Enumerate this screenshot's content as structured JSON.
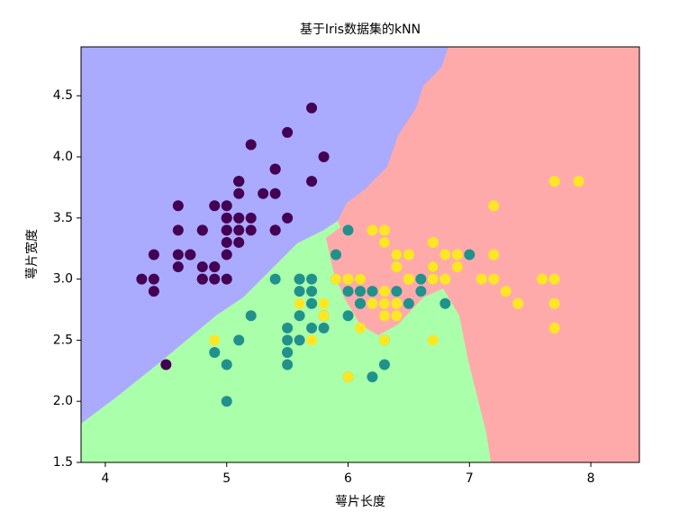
{
  "chart_data": {
    "type": "scatter",
    "title": "基于Iris数据集的kNN",
    "x_label": "萼片长度",
    "y_label": "萼片宽度",
    "xlim": [
      3.8,
      8.4
    ],
    "ylim": [
      1.5,
      4.9
    ],
    "xticks": [
      4,
      5,
      6,
      7,
      8
    ],
    "yticks": [
      1.5,
      {
        "value": 2,
        "label": "2.0"
      },
      2.5,
      {
        "value": 3,
        "label": "3.0"
      },
      3.5,
      {
        "value": 4,
        "label": "4.0"
      },
      4.5
    ],
    "series": [
      {
        "color": "#440154",
        "x": [
          5.1,
          4.9,
          4.7,
          4.6,
          5.0,
          5.4,
          4.6,
          5.0,
          4.4,
          4.9,
          5.4,
          4.8,
          4.8,
          4.3,
          5.8,
          5.7,
          5.4,
          5.1,
          5.7,
          5.1,
          5.4,
          5.1,
          4.6,
          5.1,
          4.8,
          5.0,
          5.0,
          5.2,
          5.2,
          4.7,
          4.8,
          5.4,
          5.2,
          5.5,
          4.9,
          5.0,
          5.5,
          4.9,
          4.4,
          5.1,
          5.0,
          4.5,
          4.4,
          5.0,
          5.1,
          4.8,
          5.1,
          4.6,
          5.3,
          5.0
        ],
        "values": [
          3.5,
          3.0,
          3.2,
          3.1,
          3.6,
          3.9,
          3.4,
          3.4,
          2.9,
          3.1,
          3.7,
          3.4,
          3.0,
          3.0,
          4.0,
          4.4,
          3.9,
          3.5,
          3.8,
          3.8,
          3.4,
          3.7,
          3.6,
          3.3,
          3.4,
          3.0,
          3.4,
          3.5,
          3.4,
          3.2,
          3.1,
          3.4,
          4.1,
          4.2,
          3.1,
          3.2,
          3.5,
          3.6,
          3.0,
          3.4,
          3.5,
          2.3,
          3.2,
          3.5,
          3.8,
          3.0,
          3.8,
          3.2,
          3.7,
          3.3
        ]
      },
      {
        "color": "#21918c",
        "x": [
          7.0,
          6.4,
          6.9,
          5.5,
          6.5,
          5.7,
          6.3,
          4.9,
          6.6,
          5.2,
          5.0,
          5.9,
          6.0,
          6.1,
          5.6,
          6.7,
          5.6,
          5.8,
          6.2,
          5.6,
          5.9,
          6.1,
          6.3,
          6.1,
          6.4,
          6.6,
          6.8,
          6.7,
          6.0,
          5.7,
          5.5,
          5.5,
          5.8,
          6.0,
          5.4,
          6.0,
          6.7,
          6.3,
          5.6,
          5.5,
          5.5,
          6.1,
          5.8,
          5.0,
          5.6,
          5.7,
          5.7,
          6.2,
          5.1,
          5.7
        ],
        "values": [
          3.2,
          3.2,
          3.1,
          2.3,
          2.8,
          2.8,
          3.3,
          2.4,
          2.9,
          2.7,
          2.0,
          3.0,
          2.2,
          2.9,
          2.9,
          3.1,
          3.0,
          2.7,
          2.2,
          2.5,
          3.2,
          2.8,
          2.5,
          2.8,
          2.9,
          3.0,
          2.8,
          3.0,
          2.9,
          2.6,
          2.4,
          2.4,
          2.7,
          2.7,
          3.0,
          3.4,
          3.1,
          2.3,
          3.0,
          2.5,
          2.6,
          3.0,
          2.6,
          2.3,
          2.7,
          3.0,
          2.9,
          2.9,
          2.5,
          2.8
        ]
      },
      {
        "color": "#fde725",
        "x": [
          6.3,
          5.8,
          7.1,
          6.3,
          6.5,
          7.6,
          4.9,
          7.3,
          6.7,
          7.2,
          6.5,
          6.4,
          6.8,
          5.7,
          5.8,
          6.4,
          6.5,
          7.7,
          7.7,
          6.0,
          6.9,
          5.6,
          7.7,
          6.3,
          6.7,
          7.2,
          6.2,
          6.1,
          6.4,
          7.2,
          7.4,
          7.9,
          6.4,
          6.3,
          6.1,
          7.7,
          6.3,
          6.4,
          6.0,
          6.9,
          6.7,
          6.9,
          5.8,
          6.8,
          6.7,
          6.7,
          6.3,
          6.5,
          6.2,
          5.9
        ],
        "values": [
          3.3,
          2.7,
          3.0,
          2.9,
          3.0,
          3.0,
          2.5,
          2.9,
          2.5,
          3.6,
          3.2,
          2.7,
          3.0,
          2.5,
          2.8,
          3.2,
          3.0,
          3.8,
          2.6,
          2.2,
          3.2,
          2.8,
          2.8,
          2.7,
          3.3,
          3.2,
          2.8,
          3.0,
          2.8,
          3.0,
          2.8,
          3.8,
          2.8,
          2.8,
          2.6,
          3.0,
          3.4,
          3.1,
          3.0,
          3.1,
          3.1,
          3.1,
          2.7,
          3.2,
          3.3,
          3.0,
          2.5,
          3.0,
          3.4,
          3.0
        ]
      }
    ]
  }
}
